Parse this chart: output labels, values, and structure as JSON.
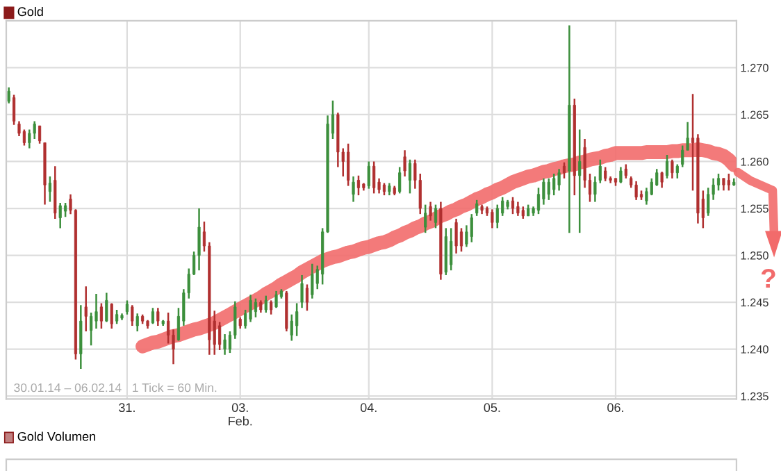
{
  "chart_data": {
    "type": "candlestick",
    "title": "Gold",
    "annotations": [
      "30.01.14 – 06.02.14   1 Tick = 60 Min.",
      "?",
      "Gold Volumen"
    ],
    "categories": [
      null,
      null,
      null,
      null,
      null,
      null,
      null,
      null,
      null,
      null,
      null,
      null,
      null,
      null,
      null,
      null,
      null,
      null,
      null,
      null,
      null,
      null,
      null,
      "31.",
      null,
      null,
      null,
      null,
      null,
      null,
      null,
      null,
      null,
      null,
      null,
      null,
      null,
      null,
      null,
      null,
      null,
      null,
      null,
      null,
      null,
      "03.\nFeb.",
      null,
      null,
      null,
      null,
      null,
      null,
      null,
      null,
      null,
      null,
      null,
      null,
      null,
      null,
      null,
      null,
      null,
      null,
      null,
      null,
      null,
      null,
      null,
      null,
      "04.",
      null,
      null,
      null,
      null,
      null,
      null,
      null,
      null,
      null,
      null,
      null,
      null,
      null,
      null,
      null,
      null,
      null,
      null,
      null,
      null,
      null,
      null,
      null,
      "05.",
      null,
      null,
      null,
      null,
      null,
      null,
      null,
      null,
      null,
      null,
      null,
      null,
      null,
      null,
      null,
      null,
      null,
      null,
      null,
      null,
      null,
      null,
      null,
      "06.",
      null,
      null,
      null,
      null,
      null,
      null,
      null,
      null,
      null,
      null,
      null,
      null,
      null,
      null,
      null,
      null,
      null,
      null,
      null,
      null,
      null,
      null,
      null
    ],
    "ohlc": [
      [
        1.2664,
        1.2679,
        1.2662,
        1.2675
      ],
      [
        1.2668,
        1.2671,
        1.2639,
        1.2643
      ],
      [
        1.264,
        1.2643,
        1.2627,
        1.263
      ],
      [
        1.2632,
        1.2634,
        1.2617,
        1.262
      ],
      [
        1.262,
        1.2634,
        1.2614,
        1.263
      ],
      [
        1.263,
        1.2643,
        1.2624,
        1.264
      ],
      [
        1.2638,
        1.2638,
        1.2619,
        1.2622
      ],
      [
        1.262,
        1.262,
        1.2554,
        1.2575
      ],
      [
        1.2568,
        1.2584,
        1.2557,
        1.2577
      ],
      [
        1.258,
        1.2595,
        1.2539,
        1.2545
      ],
      [
        1.254,
        1.2556,
        1.2529,
        1.2553
      ],
      [
        1.2547,
        1.2556,
        1.2541,
        1.2553
      ],
      [
        1.256,
        1.2565,
        1.2544,
        1.2548
      ],
      [
        1.2548,
        1.2549,
        1.2389,
        1.2395
      ],
      [
        1.2395,
        1.2447,
        1.2379,
        1.243
      ],
      [
        1.2445,
        1.2467,
        1.2419,
        1.2435
      ],
      [
        1.242,
        1.2439,
        1.2404,
        1.2435
      ],
      [
        1.243,
        1.2459,
        1.2422,
        1.244
      ],
      [
        1.2445,
        1.2449,
        1.2422,
        1.243
      ],
      [
        1.243,
        1.246,
        1.2429,
        1.2452
      ],
      [
        1.2448,
        1.2449,
        1.2422,
        1.2427
      ],
      [
        1.243,
        1.2442,
        1.2427,
        1.2437
      ],
      [
        1.2433,
        1.2438,
        1.2431,
        1.2436
      ],
      [
        1.244,
        1.2452,
        1.2437,
        1.2448
      ],
      [
        1.2445,
        1.2447,
        1.2425,
        1.243
      ],
      [
        1.2425,
        1.2438,
        1.2419,
        1.2435
      ],
      [
        1.2435,
        1.2437,
        1.2427,
        1.243
      ],
      [
        1.243,
        1.2431,
        1.2422,
        1.2425
      ],
      [
        1.2428,
        1.2444,
        1.2427,
        1.244
      ],
      [
        1.244,
        1.2444,
        1.2425,
        1.243
      ],
      [
        1.2427,
        1.2431,
        1.2425,
        1.243
      ],
      [
        1.243,
        1.2439,
        1.2406,
        1.2415
      ],
      [
        1.2415,
        1.2421,
        1.2384,
        1.24
      ],
      [
        1.241,
        1.2444,
        1.2409,
        1.2435
      ],
      [
        1.243,
        1.2464,
        1.2425,
        1.246
      ],
      [
        1.246,
        1.2486,
        1.2454,
        1.248
      ],
      [
        1.248,
        1.2504,
        1.2479,
        1.25
      ],
      [
        1.25,
        1.255,
        1.2484,
        1.253
      ],
      [
        1.2525,
        1.2536,
        1.2504,
        1.251
      ],
      [
        1.251,
        1.2514,
        1.2394,
        1.241
      ],
      [
        1.243,
        1.2441,
        1.2394,
        1.2405
      ],
      [
        1.2425,
        1.2429,
        1.2399,
        1.2405
      ],
      [
        1.24,
        1.2416,
        1.2394,
        1.241
      ],
      [
        1.24,
        1.2419,
        1.2396,
        1.2415
      ],
      [
        1.2415,
        1.2451,
        1.2411,
        1.2445
      ],
      [
        1.2432,
        1.2434,
        1.2422,
        1.2425
      ],
      [
        1.2425,
        1.2442,
        1.2422,
        1.2438
      ],
      [
        1.2432,
        1.2458,
        1.2429,
        1.2452
      ],
      [
        1.244,
        1.2454,
        1.2434,
        1.245
      ],
      [
        1.245,
        1.2452,
        1.2439,
        1.2442
      ],
      [
        1.2442,
        1.2457,
        1.2439,
        1.2452
      ],
      [
        1.245,
        1.2452,
        1.2437,
        1.2442
      ],
      [
        1.2445,
        1.2462,
        1.2444,
        1.2458
      ],
      [
        1.2456,
        1.2464,
        1.2454,
        1.2462
      ],
      [
        1.246,
        1.2462,
        1.2419,
        1.2422
      ],
      [
        1.2415,
        1.2437,
        1.2409,
        1.243
      ],
      [
        1.2425,
        1.2449,
        1.2414,
        1.244
      ],
      [
        1.245,
        1.2479,
        1.2444,
        1.247
      ],
      [
        1.2465,
        1.2469,
        1.2441,
        1.245
      ],
      [
        1.2458,
        1.2491,
        1.2454,
        1.248
      ],
      [
        1.247,
        1.2489,
        1.2464,
        1.2485
      ],
      [
        1.248,
        1.2529,
        1.2469,
        1.2525
      ],
      [
        1.2525,
        1.2649,
        1.2524,
        1.264
      ],
      [
        1.263,
        1.2665,
        1.2624,
        1.265
      ],
      [
        1.265,
        1.2652,
        1.2594,
        1.261
      ],
      [
        1.261,
        1.2614,
        1.2584,
        1.26
      ],
      [
        1.261,
        1.2619,
        1.2574,
        1.258
      ],
      [
        1.2565,
        1.2584,
        1.2557,
        1.2578
      ],
      [
        1.258,
        1.2585,
        1.2564,
        1.2572
      ],
      [
        1.2576,
        1.2577,
        1.2569,
        1.2572
      ],
      [
        1.2574,
        1.26,
        1.2571,
        1.2595
      ],
      [
        1.2595,
        1.26,
        1.2566,
        1.2572
      ],
      [
        1.2578,
        1.2582,
        1.2566,
        1.257
      ],
      [
        1.2575,
        1.2577,
        1.2564,
        1.2568
      ],
      [
        1.2568,
        1.2577,
        1.2564,
        1.2574
      ],
      [
        1.2572,
        1.2574,
        1.2564,
        1.2566
      ],
      [
        1.2568,
        1.2594,
        1.2566,
        1.2588
      ],
      [
        1.2605,
        1.2612,
        1.2584,
        1.259
      ],
      [
        1.258,
        1.2602,
        1.2566,
        1.2598
      ],
      [
        1.2598,
        1.2602,
        1.2571,
        1.258
      ],
      [
        1.258,
        1.2587,
        1.2544,
        1.255
      ],
      [
        1.253,
        1.2554,
        1.2524,
        1.2545
      ],
      [
        1.2552,
        1.2557,
        1.2537,
        1.2542
      ],
      [
        1.2535,
        1.2554,
        1.2529,
        1.255
      ],
      [
        1.255,
        1.2557,
        1.2474,
        1.248
      ],
      [
        1.2482,
        1.2529,
        1.2479,
        1.252
      ],
      [
        1.249,
        1.2529,
        1.2484,
        1.2515
      ],
      [
        1.2535,
        1.2539,
        1.2502,
        1.251
      ],
      [
        1.2525,
        1.2529,
        1.2504,
        1.251
      ],
      [
        1.2512,
        1.2532,
        1.2509,
        1.2525
      ],
      [
        1.252,
        1.2544,
        1.2514,
        1.254
      ],
      [
        1.2545,
        1.2559,
        1.2542,
        1.2555
      ],
      [
        1.2552,
        1.2554,
        1.2544,
        1.2548
      ],
      [
        1.255,
        1.2552,
        1.2542,
        1.2545
      ],
      [
        1.2546,
        1.2549,
        1.2529,
        1.2535
      ],
      [
        1.2535,
        1.2554,
        1.2529,
        1.255
      ],
      [
        1.2545,
        1.2562,
        1.2542,
        1.2558
      ],
      [
        1.2552,
        1.2559,
        1.2549,
        1.2557
      ],
      [
        1.2558,
        1.2562,
        1.2544,
        1.255
      ],
      [
        1.2552,
        1.2557,
        1.2542,
        1.2545
      ],
      [
        1.2548,
        1.2552,
        1.2539,
        1.2542
      ],
      [
        1.2542,
        1.2554,
        1.2542,
        1.255
      ],
      [
        1.2545,
        1.2552,
        1.2542,
        1.255
      ],
      [
        1.2548,
        1.2572,
        1.2544,
        1.2565
      ],
      [
        1.256,
        1.2582,
        1.2554,
        1.2578
      ],
      [
        1.2565,
        1.2582,
        1.2559,
        1.2578
      ],
      [
        1.257,
        1.2587,
        1.2564,
        1.2582
      ],
      [
        1.2575,
        1.2592,
        1.2569,
        1.2588
      ],
      [
        1.2595,
        1.2599,
        1.2582,
        1.2588
      ],
      [
        1.259,
        1.2745,
        1.2524,
        1.266
      ],
      [
        1.266,
        1.2667,
        1.2564,
        1.2585
      ],
      [
        1.2585,
        1.2634,
        1.2524,
        1.26
      ],
      [
        1.2615,
        1.2624,
        1.2572,
        1.258
      ],
      [
        1.258,
        1.2587,
        1.2557,
        1.2565
      ],
      [
        1.2565,
        1.2584,
        1.2557,
        1.2578
      ],
      [
        1.258,
        1.2602,
        1.2577,
        1.2595
      ],
      [
        1.259,
        1.2594,
        1.2579,
        1.2582
      ],
      [
        1.2582,
        1.2584,
        1.2577,
        1.258
      ],
      [
        1.2582,
        1.2582,
        1.2574,
        1.2578
      ],
      [
        1.2578,
        1.2594,
        1.2577,
        1.259
      ],
      [
        1.2592,
        1.2597,
        1.2582,
        1.2585
      ],
      [
        1.2582,
        1.2584,
        1.2572,
        1.2575
      ],
      [
        1.2575,
        1.2579,
        1.2559,
        1.2562
      ],
      [
        1.2565,
        1.2569,
        1.2559,
        1.2562
      ],
      [
        1.2558,
        1.2572,
        1.2554,
        1.2568
      ],
      [
        1.2565,
        1.2582,
        1.2564,
        1.2578
      ],
      [
        1.2575,
        1.2592,
        1.2574,
        1.2588
      ],
      [
        1.2588,
        1.2589,
        1.2572,
        1.2578
      ],
      [
        1.2585,
        1.2607,
        1.2582,
        1.26
      ],
      [
        1.26,
        1.2602,
        1.2582,
        1.2588
      ],
      [
        1.2588,
        1.2597,
        1.2582,
        1.2595
      ],
      [
        1.2597,
        1.2617,
        1.2594,
        1.2612
      ],
      [
        1.2612,
        1.2642,
        1.2612,
        1.2625
      ],
      [
        1.2625,
        1.2672,
        1.2569,
        1.262
      ],
      [
        1.2625,
        1.2629,
        1.2534,
        1.2545
      ],
      [
        1.256,
        1.2569,
        1.2529,
        1.254
      ],
      [
        1.2545,
        1.2572,
        1.2542,
        1.2565
      ],
      [
        1.2565,
        1.2582,
        1.2559,
        1.2575
      ],
      [
        1.2575,
        1.2587,
        1.2569,
        1.2582
      ],
      [
        1.2582,
        1.2582,
        1.2569,
        1.2575
      ],
      [
        1.258,
        1.2587,
        1.2569,
        1.2575
      ],
      [
        1.2575,
        1.2582,
        1.2574,
        1.2578
      ]
    ],
    "series": [
      {
        "type": "line",
        "color": "#f26b6b",
        "values": [
          null,
          null,
          null,
          null,
          null,
          null,
          null,
          null,
          null,
          null,
          null,
          null,
          null,
          null,
          null,
          null,
          null,
          null,
          null,
          null,
          null,
          null,
          null,
          null,
          null,
          null,
          1.2403,
          1.2405,
          1.2407,
          1.2408,
          1.241,
          1.2412,
          1.2414,
          1.2415,
          1.2417,
          1.2419,
          1.2421,
          1.2422,
          1.2424,
          1.2426,
          1.2428,
          1.2431,
          1.2434,
          1.2437,
          1.244,
          1.2443,
          1.2446,
          1.2449,
          1.2452,
          1.2455,
          1.2459,
          1.2462,
          1.2465,
          1.2469,
          1.2472,
          1.2475,
          1.2478,
          1.2482,
          1.2485,
          1.2488,
          1.2491,
          1.2494,
          1.2496,
          1.2498,
          1.2499,
          1.2501,
          1.2503,
          1.2504,
          1.2506,
          1.2508,
          1.2509,
          1.2511,
          1.2513,
          1.2514,
          1.2516,
          1.2519,
          1.2521,
          1.2524,
          1.2526,
          1.2529,
          1.2531,
          1.2534,
          1.2536,
          1.2539,
          1.2542,
          1.2544,
          1.2547,
          1.2549,
          1.2552,
          1.2554,
          1.2557,
          1.256,
          1.2562,
          1.2565,
          1.2567,
          1.257,
          1.2572,
          1.2575,
          1.2578,
          1.258,
          1.2582,
          1.2584,
          1.2585,
          1.2587,
          1.2589,
          1.259,
          1.2592,
          1.2593,
          1.2595,
          1.2596,
          1.2597,
          1.2599,
          1.26,
          1.2602,
          1.2603,
          1.2604,
          1.2606,
          1.2607,
          1.2609,
          1.2609,
          1.2609,
          1.2609,
          1.2609,
          1.2609,
          1.261,
          1.261,
          1.261,
          1.261,
          1.261,
          1.2611,
          1.2611,
          1.2612,
          1.2612,
          1.2612,
          1.2613,
          1.2612,
          1.2611,
          1.2609,
          1.2608,
          1.2606,
          1.2602,
          1.2596
        ]
      }
    ],
    "ylim": [
      1.2347,
      1.275
    ],
    "yticks": [
      {
        "value": 1.235,
        "label": "1.235"
      },
      {
        "value": 1.24,
        "label": "1.240"
      },
      {
        "value": 1.245,
        "label": "1.245"
      },
      {
        "value": 1.25,
        "label": "1.250"
      },
      {
        "value": 1.255,
        "label": "1.255"
      },
      {
        "value": 1.26,
        "label": "1.260"
      },
      {
        "value": 1.265,
        "label": "1.265"
      },
      {
        "value": 1.27,
        "label": "1.270"
      }
    ],
    "grid": true,
    "legend": false
  }
}
